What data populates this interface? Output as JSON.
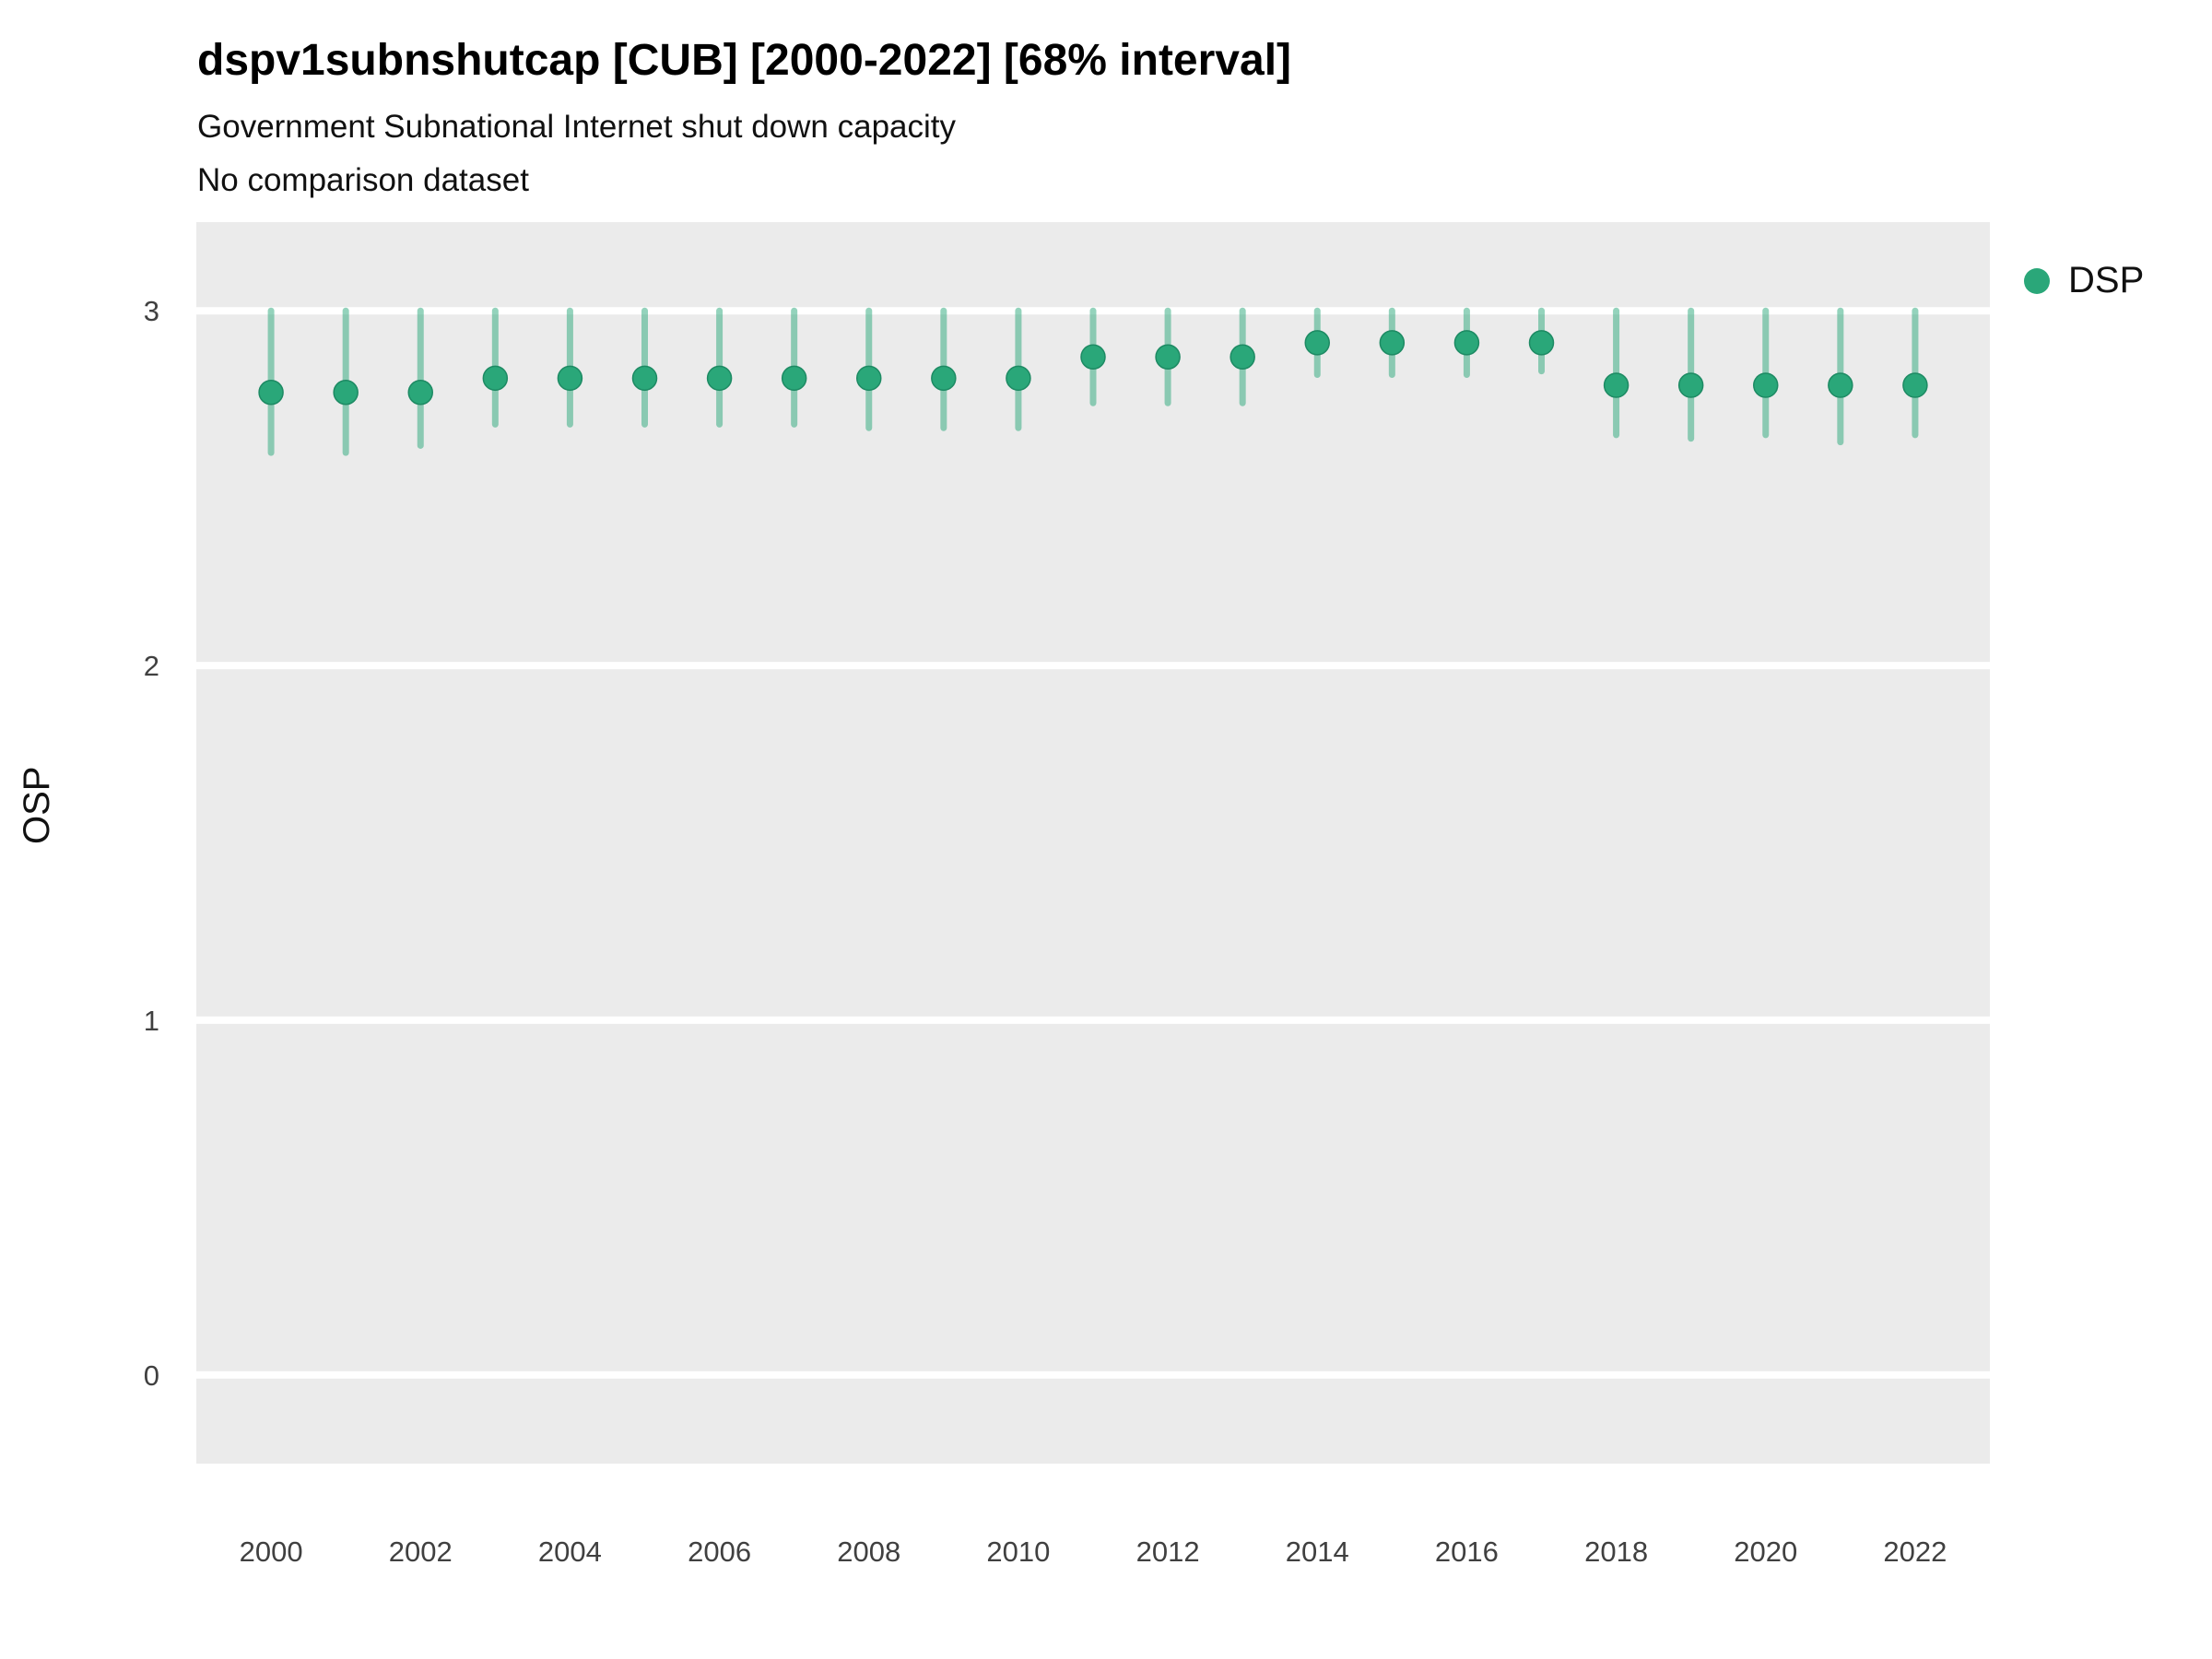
{
  "header": {
    "title": "dspv1subnshutcap [CUB] [2000-2022] [68% interval]",
    "subtitle1": "Government Subnational Internet shut down capacity",
    "subtitle2": "No comparison dataset"
  },
  "legend": {
    "items": [
      {
        "label": "DSP",
        "color": "#2aa779"
      }
    ]
  },
  "chart_data": {
    "type": "scatter",
    "title": "dspv1subnshutcap [CUB] [2000-2022] [68% interval]",
    "subtitle": "Government Subnational Internet shut down capacity",
    "note": "No comparison dataset",
    "xlabel": "",
    "ylabel": "OSP",
    "interval_label": "68% interval",
    "x": [
      2000,
      2001,
      2002,
      2003,
      2004,
      2005,
      2006,
      2007,
      2008,
      2009,
      2010,
      2011,
      2012,
      2013,
      2014,
      2015,
      2016,
      2017,
      2018,
      2019,
      2020,
      2021,
      2022
    ],
    "series": [
      {
        "name": "DSP",
        "values": [
          2.77,
          2.77,
          2.77,
          2.81,
          2.81,
          2.81,
          2.81,
          2.81,
          2.81,
          2.81,
          2.81,
          2.87,
          2.87,
          2.87,
          2.91,
          2.91,
          2.91,
          2.91,
          2.79,
          2.79,
          2.79,
          2.79,
          2.79
        ],
        "lower": [
          2.6,
          2.6,
          2.62,
          2.68,
          2.68,
          2.68,
          2.68,
          2.68,
          2.67,
          2.67,
          2.67,
          2.74,
          2.74,
          2.74,
          2.82,
          2.82,
          2.82,
          2.83,
          2.65,
          2.64,
          2.65,
          2.63,
          2.65
        ],
        "upper": [
          3.0,
          3.0,
          3.0,
          3.0,
          3.0,
          3.0,
          3.0,
          3.0,
          3.0,
          3.0,
          3.0,
          3.0,
          3.0,
          3.0,
          3.0,
          3.0,
          3.0,
          3.0,
          3.0,
          3.0,
          3.0,
          3.0,
          3.0
        ]
      }
    ],
    "xlim": [
      1999,
      2023
    ],
    "ylim": [
      -0.25,
      3.25
    ],
    "yticks": [
      0,
      1,
      2,
      3
    ],
    "xticks": [
      2000,
      2002,
      2004,
      2006,
      2008,
      2010,
      2012,
      2014,
      2016,
      2018,
      2020,
      2022
    ],
    "grid": true,
    "legend_position": "right",
    "colors": {
      "point": "#2aa779",
      "interval": "#2aa779",
      "plot_bg": "#EBEBEB",
      "grid": "#FFFFFF",
      "tick_text": "#404040"
    }
  }
}
